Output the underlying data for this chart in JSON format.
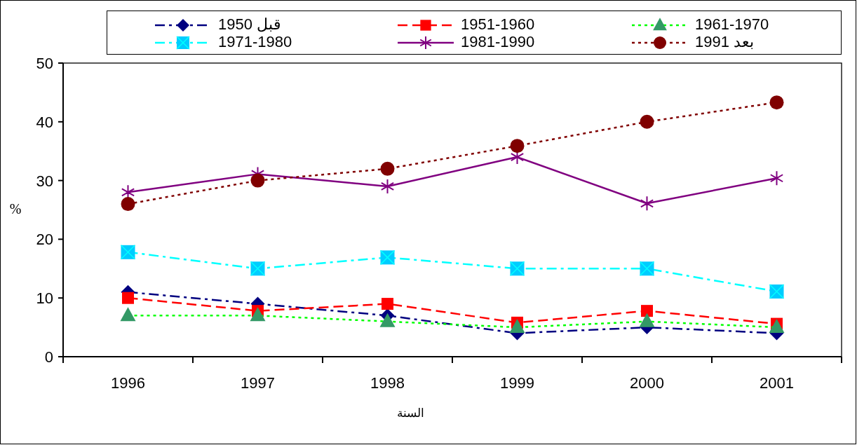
{
  "chart_data": {
    "type": "line",
    "xlabel": "السنة",
    "ylabel": "%",
    "categories": [
      "1996",
      "1997",
      "1998",
      "1999",
      "2000",
      "2001"
    ],
    "ylim": [
      0,
      50
    ],
    "yticks": [
      0,
      10,
      20,
      30,
      40,
      50
    ],
    "legend": "top",
    "series": [
      {
        "name": "قبل 1950",
        "color": "#000080",
        "marker": "diamond",
        "line_style": "dashdot",
        "values": [
          11,
          9,
          7,
          4,
          5,
          4
        ]
      },
      {
        "name": "1951-1960",
        "color": "#ff0000",
        "marker": "square",
        "line_style": "dashed",
        "values": [
          10,
          7.8,
          9,
          5.8,
          7.8,
          5.6
        ]
      },
      {
        "name": "1961-1970",
        "color": "#00ff00",
        "colors": [
          "#339966",
          "#339966",
          "#339966",
          "#339966",
          "#339966",
          "#339966"
        ],
        "marker": "triangle",
        "line_style": "dotted",
        "values": [
          7,
          7,
          6,
          5,
          6,
          5
        ]
      },
      {
        "name": "1971-1980",
        "color": "#00ffff",
        "colors": [
          "#00ccff",
          "#00ccff",
          "#00ccff",
          "#00ccff",
          "#00ccff",
          "#00ccff"
        ],
        "marker": "square",
        "line_style": "dashdot",
        "values": [
          17.8,
          15,
          16.9,
          15,
          15,
          11.1
        ]
      },
      {
        "name": "1981-1990",
        "color": "#800080",
        "marker": "cross",
        "line_style": "solid",
        "values": [
          28,
          31.1,
          29,
          34,
          26.1,
          30.4
        ]
      },
      {
        "name": "بعد 1991",
        "color": "#800000",
        "marker": "circle",
        "line_style": "dotted",
        "values": [
          26,
          30,
          32,
          35.9,
          40,
          43.3
        ]
      }
    ]
  }
}
